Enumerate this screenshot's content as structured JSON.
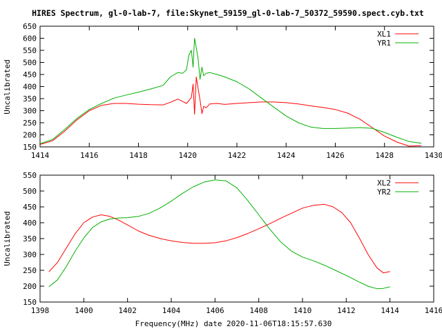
{
  "title": "HIRES Spectrum, gl-0-lab-7, file:Skynet_59159_gl-0-lab-7_50372_59590.spect.cyb.txt",
  "xlabel": "Frequency(MHz) date 2020-11-06T18:15:57.630",
  "chart_data": [
    {
      "type": "line",
      "ylabel": "Uncalibrated",
      "xlim": [
        1414,
        1430
      ],
      "ylim": [
        150,
        650
      ],
      "xticks": [
        1414,
        1416,
        1418,
        1420,
        1422,
        1424,
        1426,
        1428,
        1430
      ],
      "yticks": [
        150,
        200,
        250,
        300,
        350,
        400,
        450,
        500,
        550,
        600,
        650
      ],
      "legend_position": "top-right",
      "series": [
        {
          "name": "XL1",
          "color": "#ff0000",
          "x": [
            1414.0,
            1414.5,
            1415.0,
            1415.5,
            1416.0,
            1416.5,
            1417.0,
            1417.5,
            1418.0,
            1418.5,
            1419.0,
            1419.3,
            1419.6,
            1419.8,
            1419.95,
            1420.05,
            1420.15,
            1420.22,
            1420.28,
            1420.35,
            1420.42,
            1420.5,
            1420.58,
            1420.65,
            1420.75,
            1420.9,
            1421.2,
            1421.5,
            1422.0,
            1422.5,
            1423.0,
            1423.5,
            1424.0,
            1424.5,
            1425.0,
            1425.5,
            1426.0,
            1426.5,
            1427.0,
            1427.5,
            1428.0,
            1428.5,
            1429.0,
            1429.5
          ],
          "y": [
            160,
            175,
            215,
            262,
            300,
            322,
            330,
            330,
            327,
            325,
            324,
            335,
            348,
            338,
            330,
            342,
            355,
            410,
            285,
            440,
            395,
            345,
            288,
            318,
            312,
            328,
            330,
            326,
            330,
            333,
            336,
            336,
            333,
            328,
            320,
            313,
            305,
            290,
            265,
            230,
            195,
            170,
            153,
            155
          ]
        },
        {
          "name": "YR1",
          "color": "#00b000",
          "x": [
            1414.0,
            1414.5,
            1415.0,
            1415.5,
            1416.0,
            1416.5,
            1417.0,
            1417.5,
            1418.0,
            1418.5,
            1419.0,
            1419.3,
            1419.6,
            1419.8,
            1419.95,
            1420.05,
            1420.15,
            1420.22,
            1420.28,
            1420.35,
            1420.42,
            1420.5,
            1420.58,
            1420.65,
            1420.75,
            1420.9,
            1421.2,
            1421.5,
            1422.0,
            1422.5,
            1423.0,
            1423.5,
            1424.0,
            1424.5,
            1425.0,
            1425.5,
            1426.0,
            1426.5,
            1427.0,
            1427.5,
            1428.0,
            1428.5,
            1429.0,
            1429.5
          ],
          "y": [
            163,
            180,
            222,
            268,
            305,
            330,
            352,
            365,
            377,
            390,
            405,
            440,
            458,
            455,
            470,
            530,
            550,
            480,
            600,
            560,
            520,
            430,
            480,
            445,
            455,
            458,
            450,
            440,
            420,
            390,
            352,
            315,
            278,
            250,
            232,
            226,
            226,
            228,
            230,
            227,
            210,
            190,
            172,
            165
          ]
        }
      ]
    },
    {
      "type": "line",
      "ylabel": "Uncalibrated",
      "xlim": [
        1398,
        1416
      ],
      "ylim": [
        150,
        550
      ],
      "xticks": [
        1398,
        1400,
        1402,
        1404,
        1406,
        1408,
        1410,
        1412,
        1414,
        1416
      ],
      "yticks": [
        150,
        200,
        250,
        300,
        350,
        400,
        450,
        500,
        550
      ],
      "legend_position": "top-right",
      "series": [
        {
          "name": "XL2",
          "color": "#ff0000",
          "x": [
            1398.4,
            1398.8,
            1399.2,
            1399.6,
            1400.0,
            1400.4,
            1400.8,
            1401.2,
            1401.6,
            1402.0,
            1402.5,
            1403.0,
            1403.5,
            1404.0,
            1404.5,
            1405.0,
            1405.5,
            1406.0,
            1406.5,
            1407.0,
            1407.5,
            1408.0,
            1408.5,
            1409.0,
            1409.5,
            1410.0,
            1410.5,
            1411.0,
            1411.4,
            1411.8,
            1412.2,
            1412.6,
            1413.0,
            1413.4,
            1413.7,
            1414.0
          ],
          "y": [
            245,
            275,
            320,
            365,
            400,
            418,
            425,
            420,
            408,
            393,
            374,
            360,
            350,
            343,
            338,
            335,
            335,
            337,
            343,
            353,
            366,
            381,
            397,
            414,
            430,
            446,
            455,
            458,
            450,
            432,
            400,
            352,
            300,
            258,
            242,
            246
          ]
        },
        {
          "name": "YR2",
          "color": "#00b000",
          "x": [
            1398.4,
            1398.8,
            1399.2,
            1399.6,
            1400.0,
            1400.4,
            1400.8,
            1401.2,
            1401.6,
            1402.0,
            1402.5,
            1403.0,
            1403.5,
            1404.0,
            1404.5,
            1405.0,
            1405.5,
            1406.0,
            1406.5,
            1407.0,
            1407.5,
            1408.0,
            1408.5,
            1409.0,
            1409.5,
            1410.0,
            1410.5,
            1411.0,
            1411.5,
            1412.0,
            1412.5,
            1413.0,
            1413.4,
            1413.7,
            1414.0
          ],
          "y": [
            198,
            220,
            262,
            310,
            352,
            385,
            403,
            412,
            415,
            416,
            420,
            430,
            447,
            468,
            492,
            513,
            528,
            535,
            532,
            510,
            470,
            425,
            380,
            340,
            310,
            292,
            280,
            266,
            250,
            234,
            216,
            200,
            192,
            193,
            198
          ]
        }
      ]
    }
  ]
}
